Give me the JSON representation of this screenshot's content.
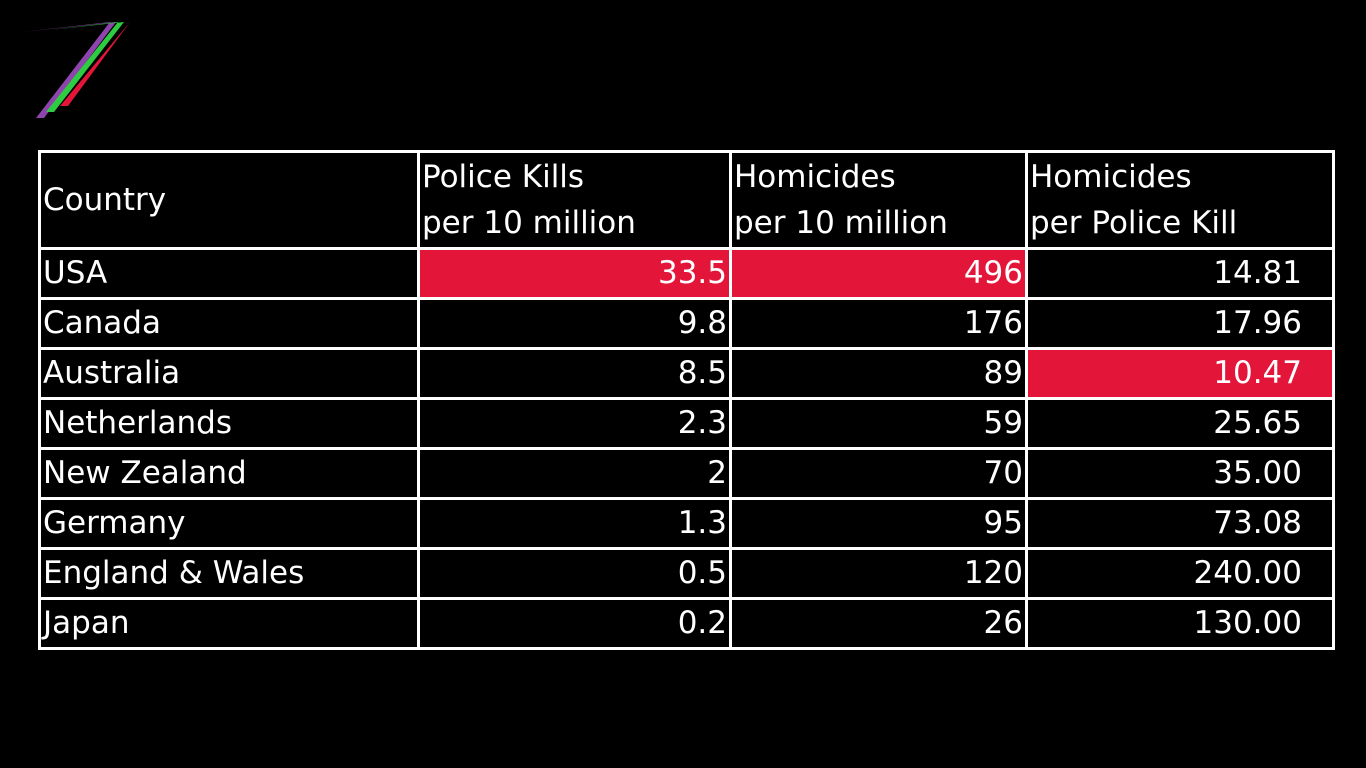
{
  "logo": {
    "icon": "channel-seven-logo",
    "colors": [
      "#8e44ad",
      "#2ecc40",
      "#e3163a"
    ]
  },
  "highlight_color": "#e3163a",
  "table": {
    "headers": [
      {
        "lines": [
          "Country"
        ]
      },
      {
        "lines": [
          "Police Kills",
          "per 10 million"
        ]
      },
      {
        "lines": [
          "Homicides",
          "per 10 million"
        ]
      },
      {
        "lines": [
          "Homicides",
          "per Police Kill"
        ]
      }
    ],
    "rows": [
      {
        "country": "USA",
        "police_kills": "33.5",
        "homicides": "496",
        "ratio": "14.81",
        "highlight": [
          1,
          2
        ]
      },
      {
        "country": "Canada",
        "police_kills": "9.8",
        "homicides": "176",
        "ratio": "17.96",
        "highlight": []
      },
      {
        "country": "Australia",
        "police_kills": "8.5",
        "homicides": "89",
        "ratio": "10.47",
        "highlight": [
          3
        ]
      },
      {
        "country": "Netherlands",
        "police_kills": "2.3",
        "homicides": "59",
        "ratio": "25.65",
        "highlight": []
      },
      {
        "country": "New Zealand",
        "police_kills": "2",
        "homicides": "70",
        "ratio": "35.00",
        "highlight": []
      },
      {
        "country": "Germany",
        "police_kills": "1.3",
        "homicides": "95",
        "ratio": "73.08",
        "highlight": []
      },
      {
        "country": "England & Wales",
        "police_kills": "0.5",
        "homicides": "120",
        "ratio": "240.00",
        "highlight": []
      },
      {
        "country": "Japan",
        "police_kills": "0.2",
        "homicides": "26",
        "ratio": "130.00",
        "highlight": []
      }
    ]
  }
}
